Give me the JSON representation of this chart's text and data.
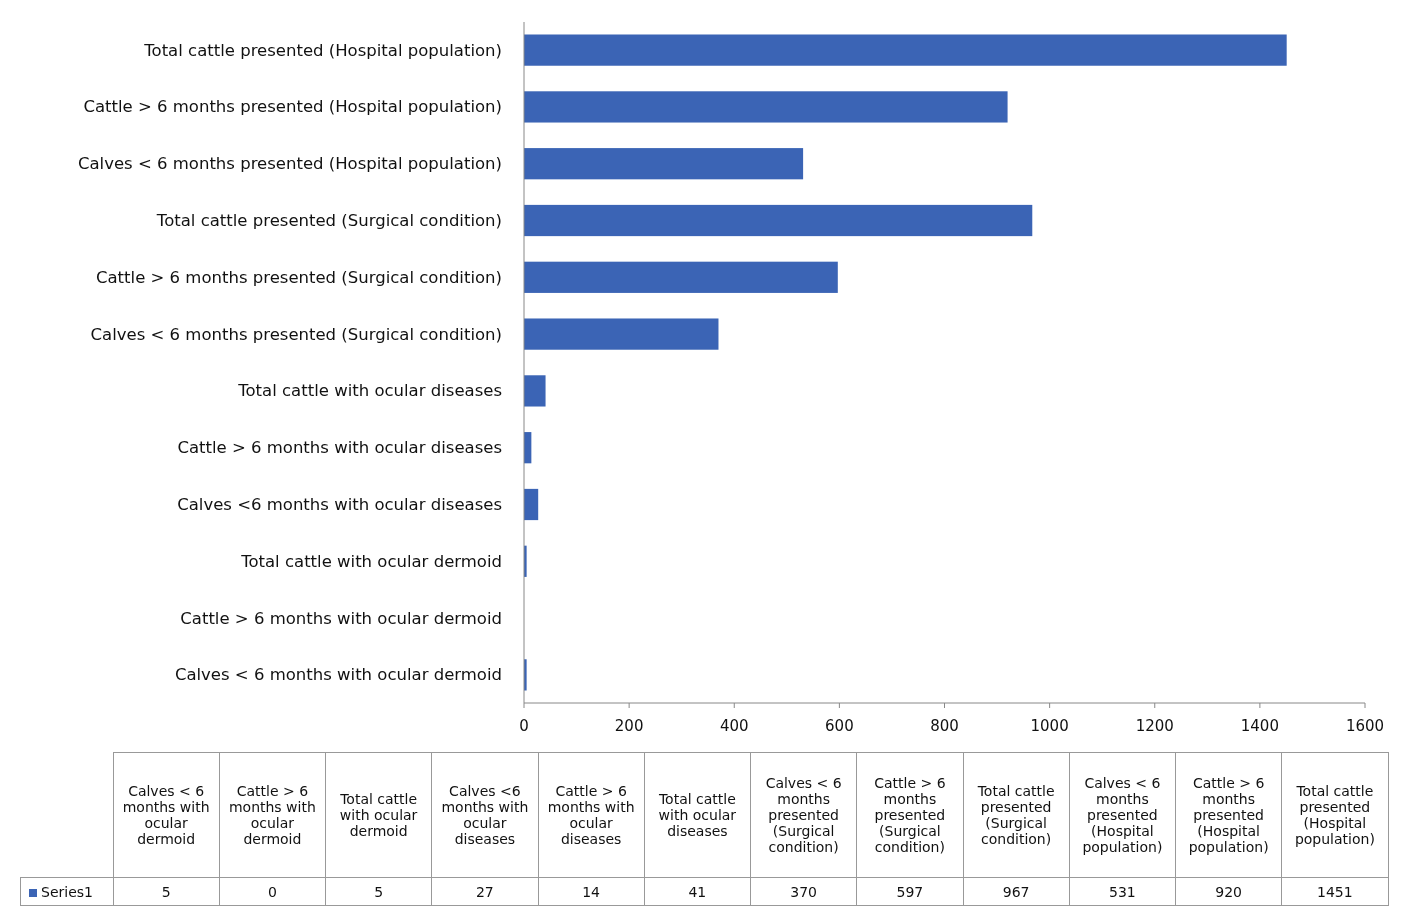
{
  "chart_data": [
    {
      "type": "bar",
      "orientation": "horizontal",
      "categories": [
        "Total cattle presented (Hospital population)",
        "Cattle > 6 months presented (Hospital population)",
        "Calves < 6 months presented (Hospital population)",
        "Total cattle presented (Surgical condition)",
        "Cattle > 6 months presented (Surgical condition)",
        "Calves < 6 months presented (Surgical condition)",
        "Total cattle with ocular diseases",
        "Cattle > 6 months with ocular diseases",
        "Calves <6 months with ocular diseases",
        "Total cattle with ocular dermoid",
        "Cattle > 6 months with ocular dermoid",
        "Calves < 6 months with ocular dermoid"
      ],
      "series": [
        {
          "color": "#3b64b5",
          "values": [
            1451,
            920,
            531,
            967,
            597,
            370,
            41,
            14,
            27,
            5,
            0,
            5
          ]
        }
      ],
      "xlim": [
        0,
        1600
      ],
      "xticks": [
        0,
        200,
        400,
        600,
        800,
        1000,
        1200,
        1400,
        1600
      ]
    },
    {
      "type": "other",
      "categories": [
        "Calves < 6 months with ocular dermoid",
        "Cattle > 6 months with ocular dermoid",
        "Total cattle with ocular dermoid",
        "Calves <6 months with ocular diseases",
        "Cattle > 6 months with ocular diseases",
        "Total cattle with ocular diseases",
        "Calves < 6 months presented (Surgical condition)",
        "Cattle > 6 months presented (Surgical condition)",
        "Total cattle presented (Surgical condition)",
        "Calves < 6 months presented (Hospital population)",
        "Cattle > 6 months presented (Hospital population)",
        "Total cattle presented (Hospital population)"
      ],
      "series": [
        {
          "name": "Series1",
          "color": "#3b64b5",
          "values": [
            5,
            0,
            5,
            27,
            14,
            41,
            370,
            597,
            967,
            531,
            920,
            1451
          ]
        }
      ],
      "data_labels": true,
      "legend": "left"
    }
  ]
}
